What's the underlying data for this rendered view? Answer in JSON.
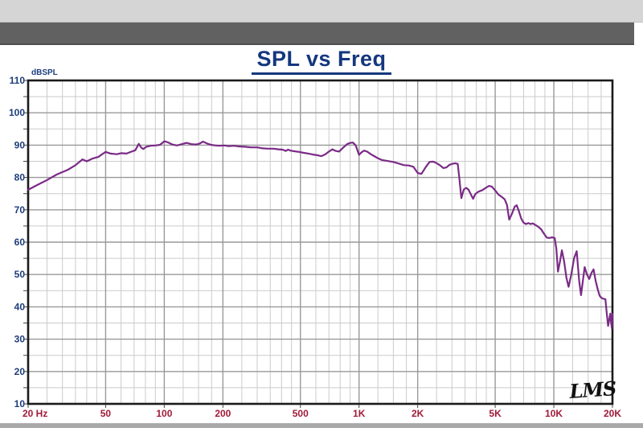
{
  "window": {
    "titlebar_color": "#d5d5d5",
    "toolbar_color": "#616161",
    "bottom_strip_color": "#a9a9a9"
  },
  "colors": {
    "title_navy": "#14377e",
    "y_label_navy": "#1d3d7c",
    "x_label_crimson": "#a01a38",
    "curve_purple": "#7a2b86",
    "grid_major": "#999999",
    "grid_minor": "#cbcbcb",
    "frame": "#1a1a1a",
    "watermark": "#111111"
  },
  "chart_data": {
    "type": "line",
    "title": "SPL vs Freq",
    "ylabel": "dBSPL",
    "xlabel": "",
    "x_scale": "log",
    "x_range_hz": [
      20,
      20000
    ],
    "y_range_db": [
      10,
      110
    ],
    "grid": {
      "major_db_step": 10,
      "minor_db_step": 5,
      "legend": "none"
    },
    "watermark": "LMS",
    "y_ticks": [
      {
        "db": 110,
        "label": "110"
      },
      {
        "db": 100,
        "label": "100"
      },
      {
        "db": 90,
        "label": "90"
      },
      {
        "db": 80,
        "label": "80"
      },
      {
        "db": 70,
        "label": "70"
      },
      {
        "db": 60,
        "label": "60"
      },
      {
        "db": 50,
        "label": "50"
      },
      {
        "db": 40,
        "label": "40"
      },
      {
        "db": 30,
        "label": "30"
      },
      {
        "db": 20,
        "label": "20"
      },
      {
        "db": 10,
        "label": "10"
      }
    ],
    "x_ticks": [
      {
        "hz": 20,
        "label": "20 Hz"
      },
      {
        "hz": 50,
        "label": "50"
      },
      {
        "hz": 100,
        "label": "100"
      },
      {
        "hz": 200,
        "label": "200"
      },
      {
        "hz": 500,
        "label": "500"
      },
      {
        "hz": 1000,
        "label": "1K"
      },
      {
        "hz": 2000,
        "label": "2K"
      },
      {
        "hz": 5000,
        "label": "5K"
      },
      {
        "hz": 10000,
        "label": "10K"
      },
      {
        "hz": 20000,
        "label": "20K"
      }
    ],
    "x_major_gridlines_hz": [
      50,
      100,
      200,
      500,
      1000,
      2000,
      5000,
      10000
    ],
    "x_minor_gridlines_hz": [
      25,
      30,
      35,
      40,
      45,
      60,
      70,
      80,
      90,
      125,
      150,
      175,
      250,
      300,
      350,
      400,
      450,
      600,
      700,
      800,
      900,
      1250,
      1500,
      1750,
      2500,
      3000,
      3500,
      4000,
      4500,
      6000,
      7000,
      8000,
      9000,
      12500,
      15000,
      17500
    ],
    "series": [
      {
        "name": "SPL",
        "color": "#7a2b86",
        "points": [
          [
            20,
            76.2
          ],
          [
            22,
            77.5
          ],
          [
            25,
            79.2
          ],
          [
            28,
            80.9
          ],
          [
            32,
            82.4
          ],
          [
            35,
            83.8
          ],
          [
            38,
            85.6
          ],
          [
            40,
            85.0
          ],
          [
            43,
            85.9
          ],
          [
            46,
            86.4
          ],
          [
            48,
            87.2
          ],
          [
            50,
            87.9
          ],
          [
            53,
            87.4
          ],
          [
            57,
            87.2
          ],
          [
            60,
            87.5
          ],
          [
            64,
            87.4
          ],
          [
            68,
            88.0
          ],
          [
            71,
            88.4
          ],
          [
            74,
            90.4
          ],
          [
            76,
            89.3
          ],
          [
            78,
            88.8
          ],
          [
            81,
            89.5
          ],
          [
            85,
            89.8
          ],
          [
            90,
            89.9
          ],
          [
            95,
            90.1
          ],
          [
            100,
            91.2
          ],
          [
            104,
            90.9
          ],
          [
            110,
            90.2
          ],
          [
            116,
            89.9
          ],
          [
            123,
            90.3
          ],
          [
            130,
            90.7
          ],
          [
            138,
            90.3
          ],
          [
            146,
            90.2
          ],
          [
            152,
            90.5
          ],
          [
            158,
            91.1
          ],
          [
            166,
            90.5
          ],
          [
            174,
            90.1
          ],
          [
            183,
            89.9
          ],
          [
            192,
            89.8
          ],
          [
            203,
            89.9
          ],
          [
            215,
            89.7
          ],
          [
            228,
            89.8
          ],
          [
            242,
            89.6
          ],
          [
            258,
            89.5
          ],
          [
            278,
            89.3
          ],
          [
            300,
            89.3
          ],
          [
            320,
            89.0
          ],
          [
            342,
            88.9
          ],
          [
            365,
            88.9
          ],
          [
            385,
            88.7
          ],
          [
            405,
            88.6
          ],
          [
            420,
            88.2
          ],
          [
            432,
            88.6
          ],
          [
            445,
            88.3
          ],
          [
            465,
            88.1
          ],
          [
            492,
            87.9
          ],
          [
            520,
            87.6
          ],
          [
            550,
            87.4
          ],
          [
            580,
            87.1
          ],
          [
            610,
            86.9
          ],
          [
            640,
            86.6
          ],
          [
            672,
            87.2
          ],
          [
            700,
            88.0
          ],
          [
            730,
            88.7
          ],
          [
            758,
            88.2
          ],
          [
            790,
            88.0
          ],
          [
            828,
            89.2
          ],
          [
            868,
            90.3
          ],
          [
            900,
            90.7
          ],
          [
            930,
            90.8
          ],
          [
            962,
            89.9
          ],
          [
            1000,
            87.0
          ],
          [
            1032,
            87.8
          ],
          [
            1062,
            88.3
          ],
          [
            1100,
            88.0
          ],
          [
            1150,
            87.2
          ],
          [
            1205,
            86.5
          ],
          [
            1255,
            85.9
          ],
          [
            1310,
            85.4
          ],
          [
            1400,
            85.1
          ],
          [
            1500,
            84.8
          ],
          [
            1600,
            84.3
          ],
          [
            1700,
            83.8
          ],
          [
            1800,
            83.7
          ],
          [
            1900,
            83.3
          ],
          [
            2000,
            81.4
          ],
          [
            2090,
            81.1
          ],
          [
            2200,
            83.2
          ],
          [
            2300,
            84.8
          ],
          [
            2400,
            84.9
          ],
          [
            2505,
            84.4
          ],
          [
            2610,
            83.7
          ],
          [
            2710,
            82.9
          ],
          [
            2810,
            83.1
          ],
          [
            2910,
            83.9
          ],
          [
            3010,
            84.2
          ],
          [
            3110,
            84.4
          ],
          [
            3210,
            84.2
          ],
          [
            3270,
            80.0
          ],
          [
            3350,
            73.6
          ],
          [
            3450,
            76.3
          ],
          [
            3550,
            76.8
          ],
          [
            3650,
            76.2
          ],
          [
            3750,
            74.8
          ],
          [
            3850,
            73.4
          ],
          [
            3955,
            74.9
          ],
          [
            4100,
            75.6
          ],
          [
            4300,
            76.1
          ],
          [
            4500,
            76.9
          ],
          [
            4650,
            77.4
          ],
          [
            4800,
            77.2
          ],
          [
            5000,
            76.0
          ],
          [
            5200,
            74.7
          ],
          [
            5400,
            74.0
          ],
          [
            5600,
            73.2
          ],
          [
            5750,
            71.5
          ],
          [
            5900,
            67.0
          ],
          [
            6100,
            68.8
          ],
          [
            6300,
            71.0
          ],
          [
            6450,
            71.4
          ],
          [
            6600,
            69.8
          ],
          [
            6800,
            67.3
          ],
          [
            7000,
            66.0
          ],
          [
            7200,
            65.6
          ],
          [
            7400,
            65.9
          ],
          [
            7600,
            65.6
          ],
          [
            7800,
            65.8
          ],
          [
            8000,
            65.4
          ],
          [
            8300,
            64.8
          ],
          [
            8600,
            64.0
          ],
          [
            8900,
            62.6
          ],
          [
            9200,
            61.4
          ],
          [
            9500,
            61.3
          ],
          [
            9800,
            61.5
          ],
          [
            10100,
            61.3
          ],
          [
            10300,
            58.0
          ],
          [
            10500,
            50.9
          ],
          [
            10750,
            54.0
          ],
          [
            11000,
            57.5
          ],
          [
            11300,
            54.0
          ],
          [
            11600,
            49.0
          ],
          [
            11900,
            46.2
          ],
          [
            12300,
            50.0
          ],
          [
            12700,
            55.0
          ],
          [
            13100,
            57.2
          ],
          [
            13500,
            48.0
          ],
          [
            13800,
            43.6
          ],
          [
            14100,
            48.0
          ],
          [
            14400,
            52.3
          ],
          [
            14800,
            50.0
          ],
          [
            15200,
            48.6
          ],
          [
            15600,
            50.5
          ],
          [
            16000,
            51.6
          ],
          [
            16400,
            48.0
          ],
          [
            16800,
            45.4
          ],
          [
            17200,
            43.4
          ],
          [
            17600,
            42.7
          ],
          [
            18000,
            42.5
          ],
          [
            18400,
            42.4
          ],
          [
            18700,
            38.0
          ],
          [
            19000,
            34.1
          ],
          [
            19300,
            36.5
          ],
          [
            19500,
            37.9
          ],
          [
            19700,
            35.0
          ],
          [
            19850,
            33.4
          ],
          [
            20000,
            37.8
          ]
        ]
      }
    ]
  }
}
